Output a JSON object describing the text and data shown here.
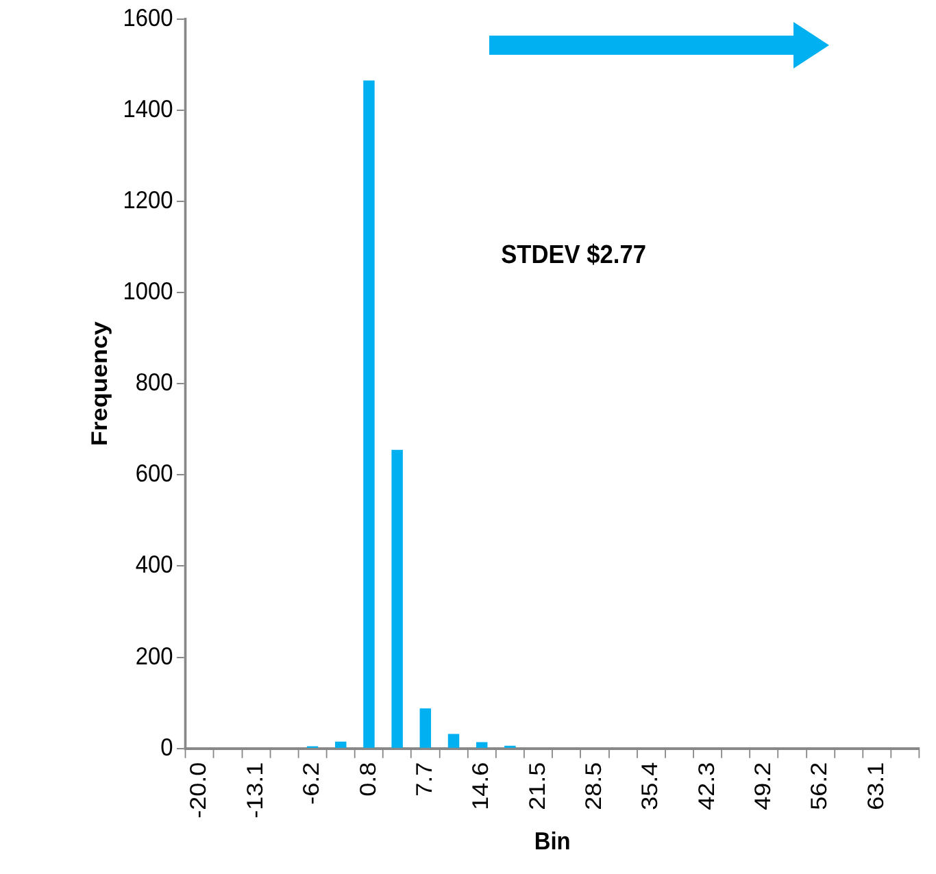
{
  "chart_data": {
    "type": "bar",
    "xlabel": "Bin",
    "ylabel": "Frequency",
    "categories": [
      "-20.0",
      null,
      "-13.1",
      null,
      "-6.2",
      null,
      "0.8",
      null,
      "7.7",
      null,
      "14.6",
      null,
      "21.5",
      null,
      "28.5",
      null,
      "35.4",
      null,
      "42.3",
      null,
      "49.2",
      null,
      "56.2",
      null,
      "63.1",
      null
    ],
    "values": [
      0,
      0,
      0,
      0,
      5,
      15,
      1465,
      655,
      88,
      32,
      14,
      6,
      0,
      0,
      0,
      0,
      0,
      0,
      0,
      0,
      0,
      0,
      0,
      0,
      0,
      0
    ],
    "color": "#00b0f0",
    "ylim": [
      0,
      1600
    ],
    "yticks": [
      0,
      200,
      400,
      600,
      800,
      1000,
      1200,
      1400,
      1600
    ],
    "grid": false,
    "legend": false,
    "annotations": [
      "STDEV $2.77"
    ]
  }
}
